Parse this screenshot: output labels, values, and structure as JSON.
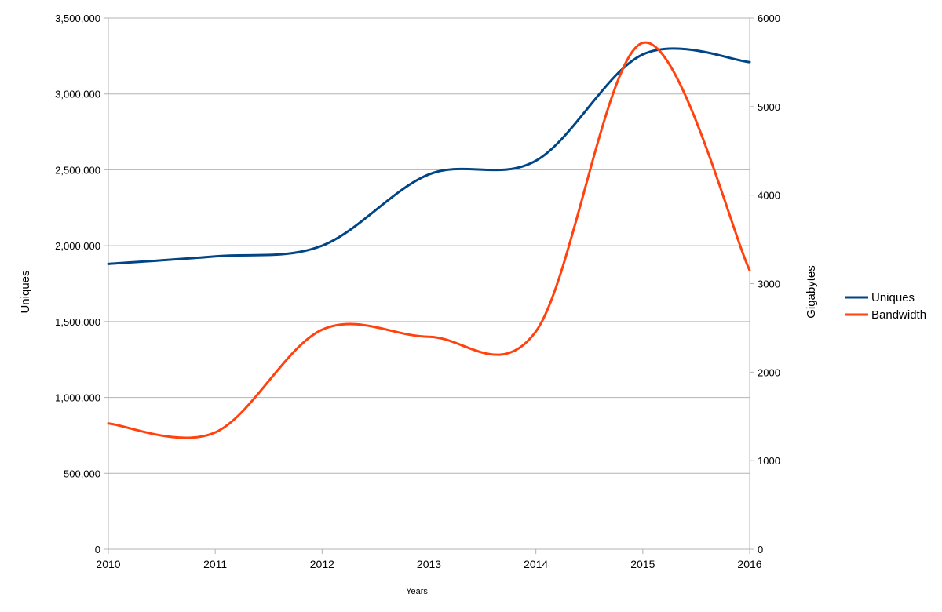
{
  "chart_data": {
    "type": "line",
    "title": "",
    "xlabel": "Years",
    "ylabel": "Uniques",
    "y2label": "Gigabytes",
    "x": [
      2010,
      2011,
      2012,
      2013,
      2014,
      2015,
      2016
    ],
    "xlim": [
      2010,
      2016
    ],
    "ylim": [
      0,
      3500000
    ],
    "y2lim": [
      0,
      6000
    ],
    "y_ticks": [
      "0",
      "500,000",
      "1,000,000",
      "1,500,000",
      "2,000,000",
      "2,500,000",
      "3,000,000",
      "3,500,000"
    ],
    "y2_ticks": [
      "0",
      "1000",
      "2000",
      "3000",
      "4000",
      "5000",
      "6000"
    ],
    "x_ticks": [
      "2010",
      "2011",
      "2012",
      "2013",
      "2014",
      "2015",
      "2016"
    ],
    "grid": true,
    "legend_position": "right",
    "series": [
      {
        "name": "Uniques",
        "axis": "left",
        "color": "#004586",
        "x": [
          2010,
          2011,
          2012,
          2013,
          2014,
          2015,
          2016
        ],
        "values": [
          1880000,
          1930000,
          2000000,
          2470000,
          2560000,
          3260000,
          3210000
        ]
      },
      {
        "name": "Bandwidth",
        "axis": "right",
        "color": "#ff420e",
        "x": [
          2010,
          2011,
          2012,
          2013,
          2014,
          2015,
          2016
        ],
        "values": [
          1420,
          1320,
          2480,
          2400,
          2460,
          5720,
          3150
        ]
      }
    ]
  }
}
